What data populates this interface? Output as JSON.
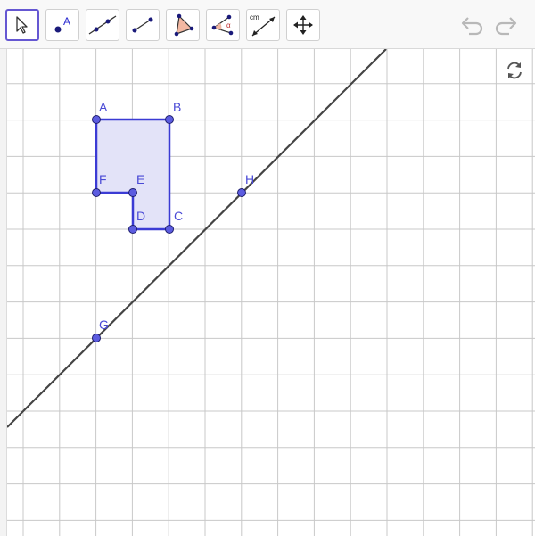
{
  "toolbar": {
    "tools": [
      {
        "name": "move-tool",
        "icon": "arrow-pointer-icon",
        "active": true
      },
      {
        "name": "point-tool",
        "icon": "point-icon",
        "label": "A"
      },
      {
        "name": "line-tool",
        "icon": "line-icon"
      },
      {
        "name": "segment-tool",
        "icon": "segment-icon"
      },
      {
        "name": "polygon-tool",
        "icon": "polygon-icon"
      },
      {
        "name": "angle-tool",
        "icon": "angle-icon",
        "label": "α"
      },
      {
        "name": "distance-tool",
        "icon": "distance-icon",
        "label": "cm"
      },
      {
        "name": "move-graphics-tool",
        "icon": "move-arrows-icon"
      }
    ],
    "undo_icon": "undo-icon",
    "redo_icon": "redo-icon"
  },
  "graphics": {
    "refresh_icon": "refresh-icon",
    "colors": {
      "grid": "#c8c8c8",
      "line": "#444444",
      "polygon_fill": "#e3e3f8",
      "polygon_stroke": "#3b3bd4",
      "point_fill": "#5c5ce0",
      "label": "#4a4ad6",
      "accent": "#6557d2"
    },
    "points": {
      "A": "A",
      "B": "B",
      "C": "C",
      "D": "D",
      "E": "E",
      "F": "F",
      "G": "G",
      "H": "H"
    }
  }
}
